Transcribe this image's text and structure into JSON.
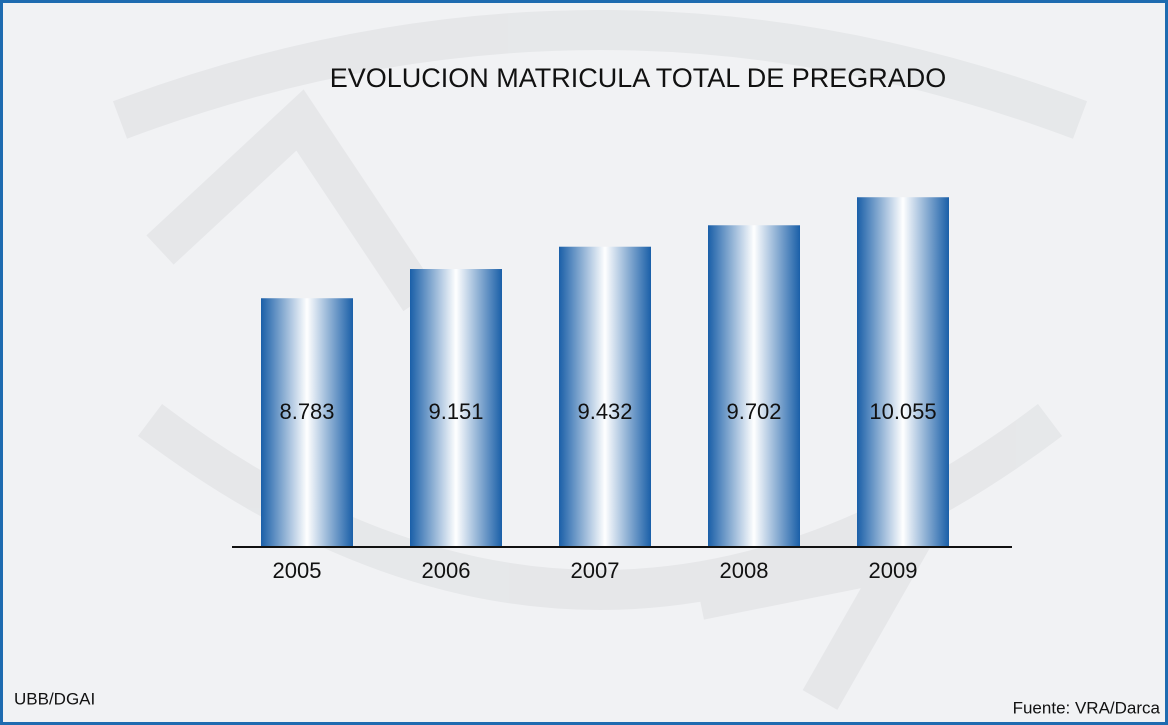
{
  "chart_data": {
    "type": "bar",
    "title": "EVOLUCION MATRICULA TOTAL DE PREGRADO",
    "categories": [
      "2005",
      "2006",
      "2007",
      "2008",
      "2009"
    ],
    "values": [
      8783,
      9151,
      9432,
      9702,
      10055
    ],
    "value_labels": [
      "8.783",
      "9.151",
      "9.432",
      "9.702",
      "10.055"
    ],
    "color": "#1a5fa8",
    "ylim": [
      5650,
      10650
    ],
    "source": "Fuente: VRA/Darca",
    "credit": "UBB/DGAI"
  }
}
